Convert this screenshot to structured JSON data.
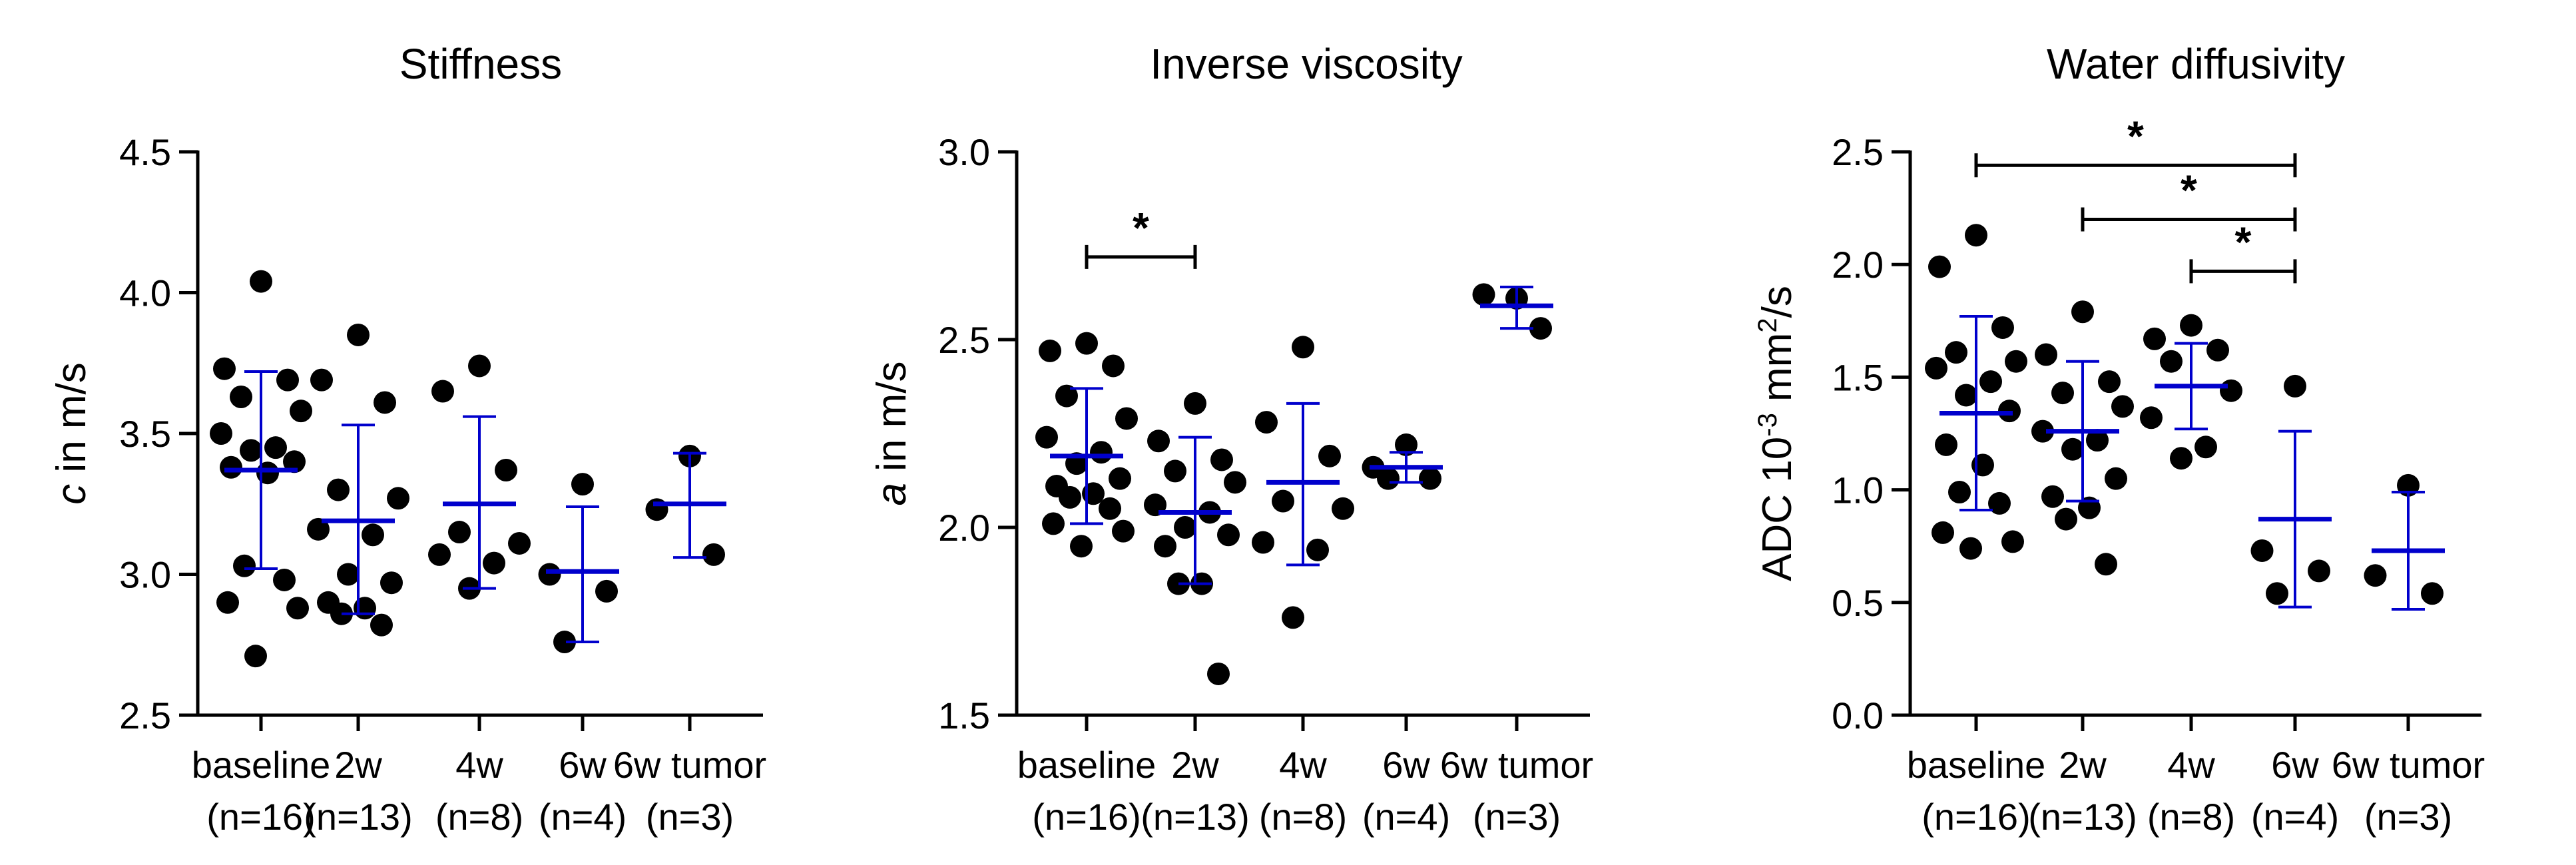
{
  "chart_data": [
    {
      "type": "scatter",
      "title": "Stiffness",
      "ylabel_italic": "c",
      "ylabel_rest": " in m/s",
      "ylim": [
        2.5,
        4.5
      ],
      "yticks": [
        "2.5",
        "3.0",
        "3.5",
        "4.0",
        "4.5"
      ],
      "categories": [
        "baseline",
        "2w",
        "4w",
        "6w",
        "6w tumor"
      ],
      "counts": [
        "(n=16)",
        "(n=13)",
        "(n=8)",
        "(n=4)",
        "(n=3)"
      ],
      "groups": [
        {
          "mean": 3.37,
          "sd_low": 3.02,
          "sd_high": 3.72,
          "points": [
            4.04,
            3.73,
            3.69,
            3.63,
            3.58,
            3.5,
            3.45,
            3.44,
            3.4,
            3.38,
            3.36,
            3.03,
            2.98,
            2.9,
            2.88,
            2.71
          ]
        },
        {
          "mean": 3.19,
          "sd_low": 2.86,
          "sd_high": 3.53,
          "points": [
            3.85,
            3.69,
            3.61,
            3.3,
            3.27,
            3.16,
            3.14,
            3.0,
            2.97,
            2.9,
            2.88,
            2.86,
            2.82
          ]
        },
        {
          "mean": 3.25,
          "sd_low": 2.95,
          "sd_high": 3.56,
          "points": [
            3.74,
            3.65,
            3.37,
            3.15,
            3.11,
            3.07,
            3.04,
            2.95
          ]
        },
        {
          "mean": 3.01,
          "sd_low": 2.76,
          "sd_high": 3.24,
          "points": [
            3.32,
            3.0,
            2.94,
            2.76
          ]
        },
        {
          "mean": 3.25,
          "sd_low": 3.06,
          "sd_high": 3.43,
          "points": [
            3.42,
            3.23,
            3.07
          ]
        }
      ],
      "significance": []
    },
    {
      "type": "scatter",
      "title": "Inverse viscosity",
      "ylabel_italic": "a",
      "ylabel_rest": " in m/s",
      "ylim": [
        1.5,
        3.0
      ],
      "yticks": [
        "1.5",
        "2.0",
        "2.5",
        "3.0"
      ],
      "categories": [
        "baseline",
        "2w",
        "4w",
        "6w",
        "6w tumor"
      ],
      "counts": [
        "(n=16)",
        "(n=13)",
        "(n=8)",
        "(n=4)",
        "(n=3)"
      ],
      "groups": [
        {
          "mean": 2.19,
          "sd_low": 2.01,
          "sd_high": 2.37,
          "points": [
            2.49,
            2.47,
            2.43,
            2.35,
            2.29,
            2.24,
            2.2,
            2.17,
            2.13,
            2.11,
            2.09,
            2.08,
            2.05,
            2.01,
            1.99,
            1.95
          ]
        },
        {
          "mean": 2.04,
          "sd_low": 1.85,
          "sd_high": 2.24,
          "points": [
            2.33,
            2.23,
            2.18,
            2.15,
            2.12,
            2.06,
            2.04,
            2.0,
            1.98,
            1.95,
            1.85,
            1.85,
            1.61
          ]
        },
        {
          "mean": 2.12,
          "sd_low": 1.9,
          "sd_high": 2.33,
          "points": [
            2.48,
            2.28,
            2.19,
            2.07,
            2.05,
            1.96,
            1.94,
            1.76
          ]
        },
        {
          "mean": 2.16,
          "sd_low": 2.12,
          "sd_high": 2.2,
          "points": [
            2.22,
            2.16,
            2.13,
            2.13
          ]
        },
        {
          "mean": 2.59,
          "sd_low": 2.53,
          "sd_high": 2.64,
          "points": [
            2.61,
            2.62,
            2.53
          ]
        }
      ],
      "significance": [
        {
          "from": 0,
          "to": 1,
          "y": 2.72,
          "label": "*"
        }
      ]
    },
    {
      "type": "scatter",
      "title": "Water diffusivity",
      "ylabel_prefix": "ADC 10",
      "ylabel_sup1": "-3",
      "ylabel_mid": " mm",
      "ylabel_sup2": "2",
      "ylabel_suffix": "/s",
      "ylim": [
        0.0,
        2.5
      ],
      "yticks": [
        "0.0",
        "0.5",
        "1.0",
        "1.5",
        "2.0",
        "2.5"
      ],
      "categories": [
        "baseline",
        "2w",
        "4w",
        "6w",
        "6w tumor"
      ],
      "counts": [
        "(n=16)",
        "(n=13)",
        "(n=8)",
        "(n=4)",
        "(n=3)"
      ],
      "groups": [
        {
          "mean": 1.34,
          "sd_low": 0.91,
          "sd_high": 1.77,
          "points": [
            2.13,
            1.99,
            1.72,
            1.61,
            1.57,
            1.54,
            1.48,
            1.42,
            1.35,
            1.2,
            1.11,
            0.99,
            0.94,
            0.81,
            0.77,
            0.74
          ]
        },
        {
          "mean": 1.26,
          "sd_low": 0.95,
          "sd_high": 1.57,
          "points": [
            1.79,
            1.6,
            1.48,
            1.43,
            1.37,
            1.26,
            1.22,
            1.18,
            1.05,
            0.97,
            0.92,
            0.87,
            0.67
          ]
        },
        {
          "mean": 1.46,
          "sd_low": 1.27,
          "sd_high": 1.65,
          "points": [
            1.73,
            1.67,
            1.62,
            1.57,
            1.44,
            1.32,
            1.19,
            1.14
          ]
        },
        {
          "mean": 0.87,
          "sd_low": 0.48,
          "sd_high": 1.26,
          "points": [
            1.46,
            0.73,
            0.64,
            0.54
          ]
        },
        {
          "mean": 0.73,
          "sd_low": 0.47,
          "sd_high": 0.99,
          "points": [
            1.02,
            0.62,
            0.54
          ]
        }
      ],
      "significance": [
        {
          "from": 0,
          "to": 3,
          "y": 2.44,
          "label": "*"
        },
        {
          "from": 1,
          "to": 3,
          "y": 2.2,
          "label": "*"
        },
        {
          "from": 2,
          "to": 3,
          "y": 1.97,
          "label": "*"
        }
      ]
    }
  ]
}
